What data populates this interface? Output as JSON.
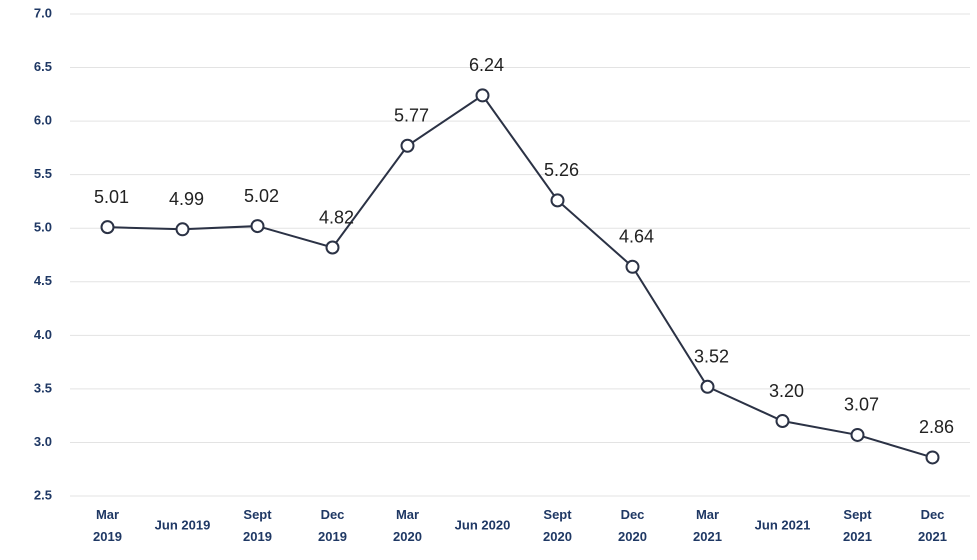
{
  "chart_data": {
    "type": "line",
    "categories": [
      "Mar 2019",
      "Jun 2019",
      "Sept 2019",
      "Dec 2019",
      "Mar 2020",
      "Jun 2020",
      "Sept 2020",
      "Dec 2020",
      "Mar 2021",
      "Jun 2021",
      "Sept 2021",
      "Dec 2021"
    ],
    "values": [
      5.01,
      4.99,
      5.02,
      4.82,
      5.77,
      6.24,
      5.26,
      4.64,
      3.52,
      3.2,
      3.07,
      2.86
    ],
    "value_labels": [
      "5.01",
      "4.99",
      "5.02",
      "4.82",
      "5.77",
      "6.24",
      "5.26",
      "4.64",
      "3.52",
      "3.20",
      "3.07",
      "2.86"
    ],
    "color": "#2b3245",
    "ylim": [
      2.5,
      7.0
    ],
    "yticks": [
      2.5,
      {
        "value": 3.0,
        "label": "3.0"
      },
      3.5,
      {
        "value": 4.0,
        "label": "4.0"
      },
      4.5,
      {
        "value": 5.0,
        "label": "5.0"
      },
      5.5,
      {
        "value": 6.0,
        "label": "6.0"
      },
      6.5,
      {
        "value": 7.0,
        "label": "7.0"
      }
    ],
    "grid": true
  }
}
